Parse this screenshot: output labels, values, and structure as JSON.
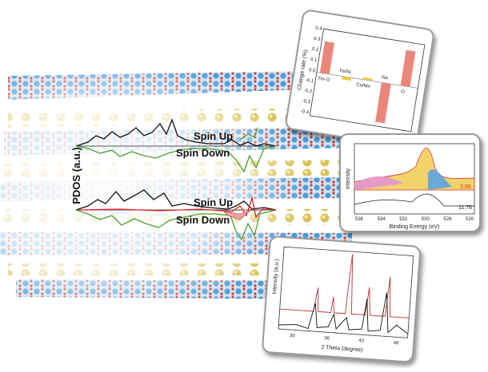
{
  "main": {
    "y_label": "PDOS (a.u.)",
    "upper": {
      "up": "Spin Up",
      "down": "Spin Down"
    },
    "lower": {
      "up": "Spin Up",
      "down": "Spin Down"
    }
  },
  "bar_inset": {
    "y_label": "Change rate (%)",
    "yticks": [
      "0.4",
      "0.3",
      "0.2",
      "0.1",
      "0.0",
      "-0.1",
      "-0.2",
      "-0.3",
      "-0.4"
    ],
    "categories": [
      "Tm-O",
      "Fe/Ni",
      "Co/Mn",
      "Na",
      "O"
    ]
  },
  "xps_inset": {
    "x_label": "Binding Energy (eV)",
    "y_label": "Intensity",
    "xticks": [
      536,
      534,
      532,
      530,
      528,
      526
    ],
    "labels": [
      "3.66",
      "11.76"
    ]
  },
  "xrd_inset": {
    "x_label": "2 Theta (degree)",
    "y_label": "Intensity (a.u.)",
    "xticks": [
      30,
      36,
      42,
      48
    ]
  }
}
